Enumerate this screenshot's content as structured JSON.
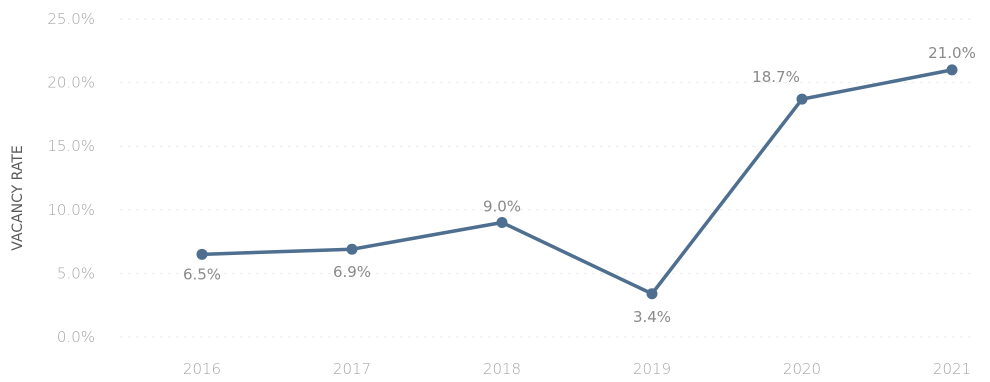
{
  "chart_data": {
    "type": "line",
    "title": "",
    "xlabel": "",
    "ylabel": "VACANCY RATE",
    "categories": [
      "2016",
      "2017",
      "2018",
      "2019",
      "2020",
      "2021"
    ],
    "series": [
      {
        "values": [
          6.5,
          6.9,
          9.0,
          3.4,
          18.7,
          21.0
        ]
      }
    ],
    "data_labels": [
      "6.5%",
      "6.9%",
      "9.0%",
      "3.4%",
      "18.7%",
      "21.0%"
    ],
    "ylim": [
      0,
      25
    ],
    "yticks": [
      "0.0%",
      "5.0%",
      "10.0%",
      "15.0%",
      "20.0%",
      "25.0%"
    ],
    "grid": true,
    "legend": "none",
    "colors": {
      "line": "#4e6f8f",
      "marker": "#4e6f8f"
    }
  }
}
